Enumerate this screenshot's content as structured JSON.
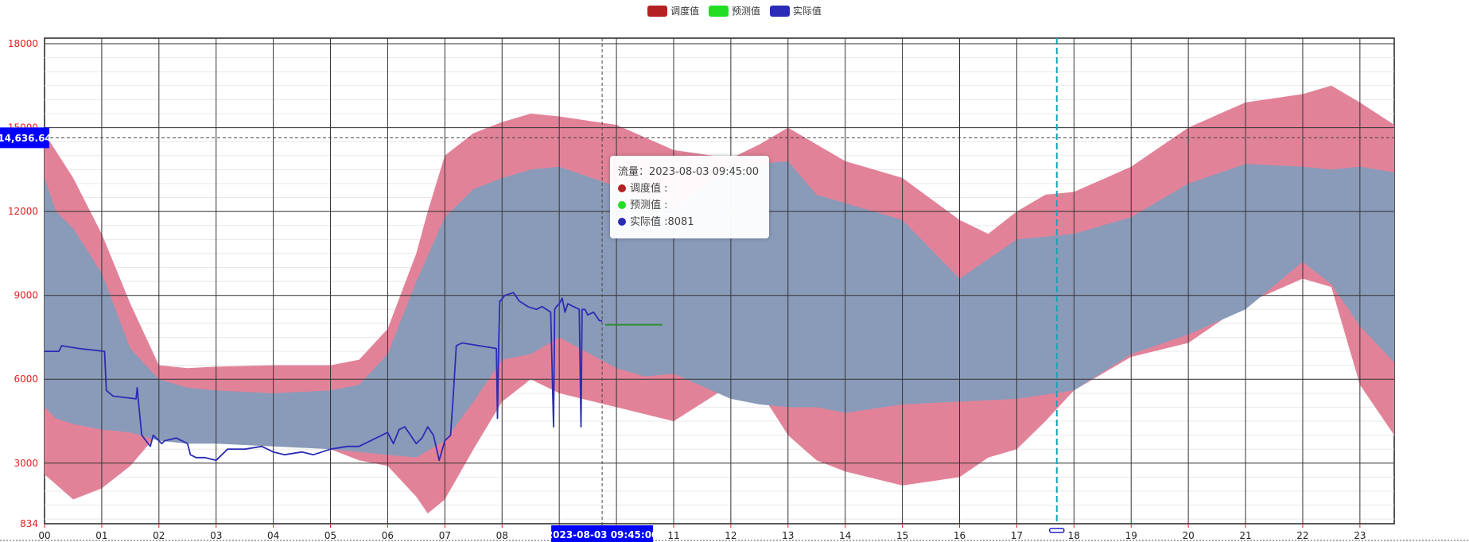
{
  "legend": [
    {
      "name": "调度值",
      "color": "#b22222"
    },
    {
      "name": "预测值",
      "color": "#22dd22"
    },
    {
      "name": "实际值",
      "color": "#2b2bb5"
    }
  ],
  "tooltip": {
    "header": "流量：2023-08-03 09:45:00",
    "rows": [
      {
        "label": "调度值 :",
        "color": "#b22222"
      },
      {
        "label": "预测值 :",
        "color": "#22dd22"
      },
      {
        "label": "实际值 :8081",
        "color": "#2b2bb5"
      }
    ]
  },
  "crosshair": {
    "y_value": 14636.64,
    "y_label": "14,636.64",
    "x_value": 9.75,
    "x_label": "2023-08-03 09:45:00"
  },
  "current_time_marker_hour": 17.7,
  "colors": {
    "outer_band": "#e28299",
    "inner_band": "#8a9bb9",
    "actual_line": "#2b2bb5",
    "forecast_line": "#2e8b2e",
    "marker_line": "#14a6b8",
    "axis_label": "#e02020",
    "crosshair_label_bg": "#0000ff"
  },
  "chart_data": {
    "type": "area",
    "x_label": "",
    "y_label": "",
    "xlim": [
      0,
      23.6
    ],
    "ylim": [
      834,
      18200
    ],
    "x_ticks": [
      "00",
      "01",
      "02",
      "03",
      "04",
      "05",
      "06",
      "07",
      "08",
      "09",
      "10",
      "11",
      "12",
      "13",
      "14",
      "15",
      "16",
      "17",
      "18",
      "19",
      "20",
      "21",
      "22",
      "23"
    ],
    "y_ticks": [
      834,
      3000,
      6000,
      9000,
      12000,
      15000,
      18000
    ],
    "series": [
      {
        "name": "调度值",
        "kind": "band",
        "x": [
          0,
          0.5,
          1,
          1.5,
          2,
          2.5,
          3,
          4,
          5,
          5.5,
          6,
          6.5,
          6.7,
          7,
          7.5,
          8,
          8.5,
          9,
          10,
          11,
          12,
          12.5,
          13,
          13.5,
          14,
          15,
          16,
          16.5,
          17,
          17.5,
          18,
          19,
          20,
          21,
          22,
          22.5,
          23,
          23.6
        ],
        "upper": [
          14800,
          13200,
          11200,
          8700,
          6500,
          6400,
          6450,
          6500,
          6500,
          6700,
          7800,
          10500,
          12000,
          14000,
          14800,
          15200,
          15500,
          15400,
          15100,
          14200,
          13900,
          14400,
          15000,
          14400,
          13800,
          13200,
          11700,
          11200,
          12000,
          12600,
          12700,
          13600,
          15000,
          15900,
          16200,
          16500,
          15900,
          15100
        ],
        "lower": [
          2600,
          1700,
          2100,
          2900,
          4100,
          4100,
          4200,
          4000,
          3500,
          3100,
          2900,
          1800,
          1200,
          1700,
          3500,
          5200,
          6000,
          5500,
          5000,
          4500,
          5800,
          5600,
          4000,
          3100,
          2700,
          2200,
          2500,
          3200,
          3500,
          4500,
          5600,
          6800,
          7300,
          8700,
          9600,
          9300,
          5800,
          4000
        ]
      },
      {
        "name": "预测值",
        "kind": "band",
        "x": [
          0,
          0.2,
          0.5,
          1,
          1.5,
          2,
          2.5,
          3,
          4,
          5,
          5.5,
          6,
          6.5,
          7,
          7.5,
          8,
          8.5,
          9,
          10,
          10.5,
          11,
          12,
          12.5,
          13,
          13.5,
          14,
          15,
          16,
          17,
          18,
          19,
          20,
          21,
          22,
          22.5,
          23,
          23.6
        ],
        "upper": [
          13200,
          12000,
          11400,
          9800,
          7100,
          6000,
          5700,
          5600,
          5500,
          5600,
          5800,
          6900,
          9500,
          11800,
          12800,
          13200,
          13500,
          13600,
          12900,
          12400,
          12100,
          13600,
          13700,
          13800,
          12600,
          12300,
          11700,
          9600,
          11000,
          11200,
          11800,
          13000,
          13700,
          13600,
          13500,
          13600,
          13400
        ],
        "lower": [
          5000,
          4600,
          4400,
          4200,
          4100,
          3800,
          3700,
          3700,
          3600,
          3500,
          3400,
          3300,
          3200,
          3800,
          5200,
          6700,
          6900,
          7500,
          6400,
          6100,
          6200,
          5300,
          5100,
          5000,
          5000,
          4800,
          5100,
          5200,
          5300,
          5600,
          6900,
          7600,
          8500,
          10200,
          9400,
          7900,
          6600
        ]
      },
      {
        "name": "实际值",
        "kind": "line",
        "x": [
          0,
          0.25,
          0.3,
          0.6,
          1.05,
          1.08,
          1.2,
          1.6,
          1.62,
          1.67,
          1.7,
          1.85,
          1.9,
          2.05,
          2.1,
          2.3,
          2.5,
          2.55,
          2.65,
          2.8,
          3.0,
          3.2,
          3.5,
          3.8,
          4.0,
          4.2,
          4.5,
          4.7,
          5.0,
          5.3,
          5.5,
          5.7,
          5.9,
          6.0,
          6.1,
          6.2,
          6.3,
          6.5,
          6.6,
          6.7,
          6.8,
          6.9,
          7.0,
          7.1,
          7.15,
          7.2,
          7.3,
          7.6,
          7.9,
          7.92,
          7.94,
          7.96,
          7.97,
          8.05,
          8.2,
          8.3,
          8.45,
          8.6,
          8.7,
          8.85,
          8.9,
          8.92,
          8.95,
          9.0,
          9.05,
          9.1,
          9.15,
          9.25,
          9.35,
          9.38,
          9.4,
          9.45,
          9.5,
          9.6,
          9.7,
          9.75
        ],
        "y": [
          7000,
          7000,
          7200,
          7100,
          7000,
          5600,
          5400,
          5300,
          5700,
          4600,
          4000,
          3600,
          4000,
          3700,
          3800,
          3900,
          3700,
          3300,
          3200,
          3200,
          3100,
          3500,
          3500,
          3600,
          3400,
          3300,
          3400,
          3300,
          3500,
          3600,
          3600,
          3800,
          4000,
          4100,
          3700,
          4200,
          4300,
          3700,
          3900,
          4300,
          4000,
          3100,
          3800,
          4000,
          5500,
          7200,
          7300,
          7200,
          7100,
          4600,
          7100,
          8800,
          8800,
          9000,
          9100,
          8800,
          8600,
          8500,
          8600,
          8400,
          4300,
          8500,
          8600,
          8700,
          8900,
          8400,
          8700,
          8600,
          8500,
          4300,
          8500,
          8500,
          8300,
          8400,
          8100,
          8081
        ]
      },
      {
        "name": "forecast",
        "kind": "line",
        "x": [
          9.8,
          10.8
        ],
        "y": [
          7950,
          7950
        ]
      }
    ]
  }
}
